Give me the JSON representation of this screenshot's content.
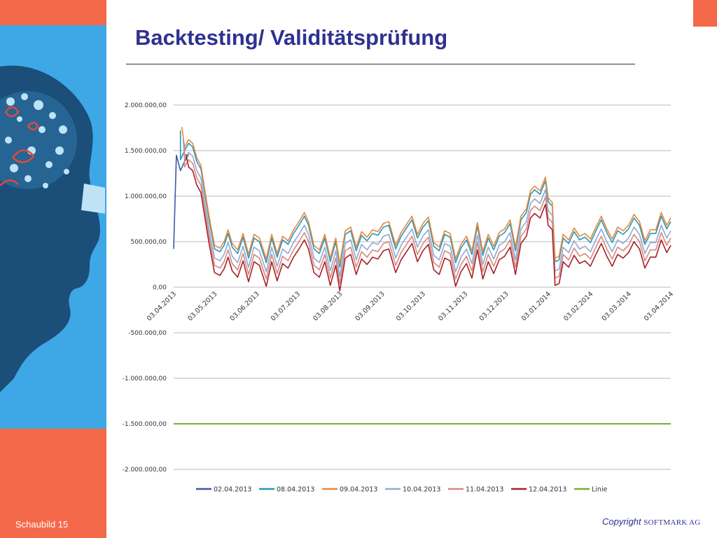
{
  "slide": {
    "title": "Backtesting/ Validitätsprüfung",
    "slide_label": "Schaubild 15",
    "copyright_label": "Copyright",
    "copyright_company": "SOFTMARK AG",
    "accent_color": "#f4694a",
    "title_color": "#2e3192"
  },
  "chart_data": {
    "type": "line",
    "title": "",
    "xlabel": "",
    "ylabel": "",
    "ylim": [
      -2000000,
      2000000
    ],
    "y_ticks": [
      2000000,
      1500000,
      1000000,
      500000,
      0,
      -500000,
      -1000000,
      -1500000,
      -2000000
    ],
    "y_tick_labels": [
      "2.000.000,00",
      "1.500.000,00",
      "1.000.000,00",
      "500.000,00",
      "0,00",
      "-500.000,00",
      "-1.000.000,00",
      "-1.500.000,00",
      "-2.000.000,00"
    ],
    "x_start": "2013-04-03",
    "x_end": "2014-04-03",
    "x_tick_labels": [
      "03.04.2013",
      "03.05.2013",
      "03.06.2013",
      "03.07.2013",
      "03.08.2013",
      "03.09.2013",
      "03.10.2013",
      "03.11.2013",
      "03.12.2013",
      "03.01.2014",
      "03.02.2014",
      "03.03.2014",
      "03.04.2014"
    ],
    "grid": true,
    "legend_position": "bottom",
    "base_series": [
      [
        "2013-04-03",
        420000
      ],
      [
        "2013-04-05",
        1450000
      ],
      [
        "2013-04-08",
        1280000
      ],
      [
        "2013-04-11",
        1380000
      ],
      [
        "2013-04-14",
        1460000
      ],
      [
        "2013-04-17",
        1420000
      ],
      [
        "2013-04-20",
        1260000
      ],
      [
        "2013-04-23",
        1180000
      ],
      [
        "2013-04-26",
        900000
      ],
      [
        "2013-04-29",
        620000
      ],
      [
        "2013-05-03",
        300000
      ],
      [
        "2013-05-07",
        270000
      ],
      [
        "2013-05-10",
        340000
      ],
      [
        "2013-05-13",
        470000
      ],
      [
        "2013-05-16",
        320000
      ],
      [
        "2013-05-20",
        250000
      ],
      [
        "2013-05-24",
        430000
      ],
      [
        "2013-05-28",
        200000
      ],
      [
        "2013-06-01",
        420000
      ],
      [
        "2013-06-05",
        380000
      ],
      [
        "2013-06-10",
        150000
      ],
      [
        "2013-06-14",
        420000
      ],
      [
        "2013-06-18",
        210000
      ],
      [
        "2013-06-22",
        400000
      ],
      [
        "2013-06-26",
        350000
      ],
      [
        "2013-06-30",
        470000
      ],
      [
        "2013-07-04",
        560000
      ],
      [
        "2013-07-08",
        660000
      ],
      [
        "2013-07-11",
        560000
      ],
      [
        "2013-07-15",
        300000
      ],
      [
        "2013-07-19",
        250000
      ],
      [
        "2013-07-23",
        420000
      ],
      [
        "2013-07-27",
        160000
      ],
      [
        "2013-07-31",
        380000
      ],
      [
        "2013-08-03",
        100000
      ],
      [
        "2013-08-07",
        460000
      ],
      [
        "2013-08-11",
        500000
      ],
      [
        "2013-08-15",
        280000
      ],
      [
        "2013-08-19",
        450000
      ],
      [
        "2013-08-23",
        390000
      ],
      [
        "2013-08-27",
        470000
      ],
      [
        "2013-08-31",
        450000
      ],
      [
        "2013-09-04",
        540000
      ],
      [
        "2013-09-08",
        560000
      ],
      [
        "2013-09-13",
        300000
      ],
      [
        "2013-09-17",
        440000
      ],
      [
        "2013-09-21",
        530000
      ],
      [
        "2013-09-25",
        620000
      ],
      [
        "2013-09-29",
        420000
      ],
      [
        "2013-10-03",
        540000
      ],
      [
        "2013-10-07",
        610000
      ],
      [
        "2013-10-11",
        330000
      ],
      [
        "2013-10-15",
        280000
      ],
      [
        "2013-10-19",
        460000
      ],
      [
        "2013-10-23",
        430000
      ],
      [
        "2013-10-27",
        150000
      ],
      [
        "2013-10-31",
        310000
      ],
      [
        "2013-11-04",
        400000
      ],
      [
        "2013-11-08",
        240000
      ],
      [
        "2013-11-12",
        550000
      ],
      [
        "2013-11-16",
        230000
      ],
      [
        "2013-11-20",
        420000
      ],
      [
        "2013-11-24",
        290000
      ],
      [
        "2013-11-28",
        440000
      ],
      [
        "2013-12-02",
        480000
      ],
      [
        "2013-12-06",
        580000
      ],
      [
        "2013-12-10",
        280000
      ],
      [
        "2013-12-14",
        620000
      ],
      [
        "2013-12-18",
        700000
      ],
      [
        "2013-12-21",
        900000
      ],
      [
        "2013-12-24",
        950000
      ],
      [
        "2013-12-28",
        900000
      ],
      [
        "2014-01-01",
        1050000
      ],
      [
        "2014-01-03",
        820000
      ],
      [
        "2014-01-06",
        770000
      ],
      [
        "2014-01-08",
        160000
      ],
      [
        "2014-01-11",
        180000
      ],
      [
        "2014-01-14",
        420000
      ],
      [
        "2014-01-18",
        360000
      ],
      [
        "2014-01-22",
        490000
      ],
      [
        "2014-01-26",
        400000
      ],
      [
        "2014-01-30",
        430000
      ],
      [
        "2014-02-03",
        370000
      ],
      [
        "2014-02-07",
        500000
      ],
      [
        "2014-02-11",
        620000
      ],
      [
        "2014-02-15",
        480000
      ],
      [
        "2014-02-19",
        370000
      ],
      [
        "2014-02-23",
        500000
      ],
      [
        "2014-02-27",
        460000
      ],
      [
        "2014-03-03",
        520000
      ],
      [
        "2014-03-07",
        640000
      ],
      [
        "2014-03-11",
        560000
      ],
      [
        "2014-03-15",
        350000
      ],
      [
        "2014-03-19",
        470000
      ],
      [
        "2014-03-23",
        470000
      ],
      [
        "2014-03-27",
        660000
      ],
      [
        "2014-03-31",
        520000
      ],
      [
        "2014-04-03",
        600000
      ]
    ],
    "series": [
      {
        "name": "02.04.2013",
        "color": "#3a5ba7",
        "offset": 0,
        "partial_end": "2013-04-15"
      },
      {
        "name": "08.04.2013",
        "color": "#2b94b7",
        "offset": 120000,
        "start": "2013-04-08"
      },
      {
        "name": "09.04.2013",
        "color": "#e8893a",
        "offset": 160000,
        "start": "2013-04-09"
      },
      {
        "name": "10.04.2013",
        "color": "#8fa9d4",
        "offset": 20000,
        "start": "2013-04-10"
      },
      {
        "name": "11.04.2013",
        "color": "#d9887a",
        "offset": -60000,
        "start": "2013-04-11"
      },
      {
        "name": "12.04.2013",
        "color": "#a8202a",
        "offset": -140000,
        "start": "2013-04-12"
      },
      {
        "name": "Linie",
        "color": "#7aab34",
        "constant": -1500000
      }
    ]
  }
}
